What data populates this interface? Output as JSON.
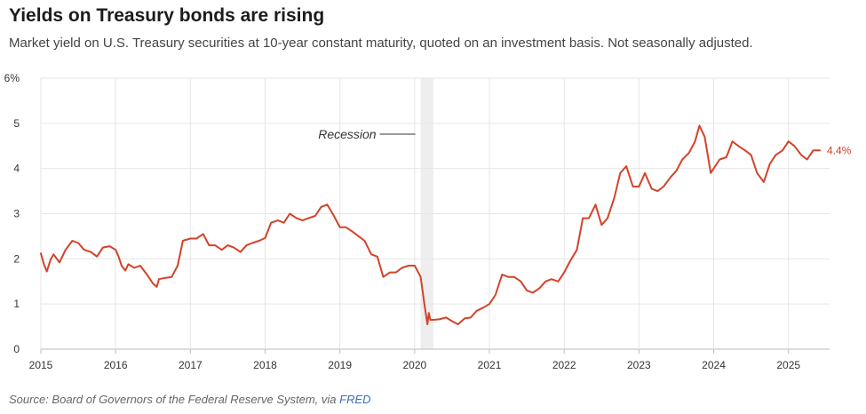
{
  "header": {
    "title": "Yields on Treasury bonds are rising",
    "subtitle": "Market yield on U.S. Treasury securities at 10-year constant maturity, quoted on an investment basis. Not seasonally adjusted."
  },
  "footer": {
    "source_prefix": "Source: Board of Governors of the Federal Reserve System, via ",
    "source_link": "FRED"
  },
  "colors": {
    "line": "#d2432a",
    "grid": "#e6e6e6",
    "recession": "#eeeeee",
    "axis": "#bbbbbb"
  },
  "chart_data": {
    "type": "line",
    "title": "Yields on Treasury bonds are rising",
    "subtitle": "Market yield on U.S. Treasury securities at 10-year constant maturity, quoted on an investment basis. Not seasonally adjusted.",
    "xlabel": "",
    "ylabel": "",
    "xlim": [
      2015.0,
      2025.55
    ],
    "ylim": [
      0,
      6
    ],
    "grid": true,
    "x_ticks": [
      2015,
      2016,
      2017,
      2018,
      2019,
      2020,
      2021,
      2022,
      2023,
      2024,
      2025
    ],
    "x_tick_labels": [
      "2015",
      "2016",
      "2017",
      "2018",
      "2019",
      "2020",
      "2021",
      "2022",
      "2023",
      "2024",
      "2025"
    ],
    "y_ticks": [
      0,
      1,
      2,
      3,
      4,
      5,
      6
    ],
    "y_tick_labels": [
      "0",
      "1",
      "2",
      "3",
      "4",
      "5",
      "6%"
    ],
    "recession": {
      "start": 2020.08,
      "end": 2020.25,
      "label": "Recession"
    },
    "end_label": "4.4%",
    "series": [
      {
        "x": [
          2015.0,
          2015.04,
          2015.08,
          2015.13,
          2015.17,
          2015.25,
          2015.33,
          2015.42,
          2015.5,
          2015.58,
          2015.67,
          2015.75,
          2015.83,
          2015.92,
          2016.0,
          2016.04,
          2016.08,
          2016.13,
          2016.17,
          2016.25,
          2016.33,
          2016.42,
          2016.5,
          2016.55,
          2016.58,
          2016.67,
          2016.75,
          2016.83,
          2016.9,
          2017.0,
          2017.08,
          2017.17,
          2017.25,
          2017.33,
          2017.42,
          2017.5,
          2017.58,
          2017.67,
          2017.75,
          2017.83,
          2017.92,
          2018.0,
          2018.08,
          2018.17,
          2018.25,
          2018.33,
          2018.42,
          2018.5,
          2018.58,
          2018.67,
          2018.75,
          2018.83,
          2018.92,
          2019.0,
          2019.08,
          2019.17,
          2019.25,
          2019.33,
          2019.42,
          2019.5,
          2019.58,
          2019.67,
          2019.75,
          2019.83,
          2019.92,
          2020.0,
          2020.08,
          2020.13,
          2020.17,
          2020.19,
          2020.21,
          2020.25,
          2020.33,
          2020.42,
          2020.5,
          2020.58,
          2020.67,
          2020.75,
          2020.83,
          2020.92,
          2021.0,
          2021.08,
          2021.17,
          2021.25,
          2021.33,
          2021.42,
          2021.5,
          2021.58,
          2021.67,
          2021.75,
          2021.83,
          2021.92,
          2022.0,
          2022.08,
          2022.17,
          2022.25,
          2022.33,
          2022.42,
          2022.5,
          2022.58,
          2022.67,
          2022.75,
          2022.83,
          2022.92,
          2023.0,
          2023.08,
          2023.17,
          2023.25,
          2023.33,
          2023.42,
          2023.5,
          2023.58,
          2023.67,
          2023.75,
          2023.81,
          2023.88,
          2023.96,
          2024.0,
          2024.08,
          2024.17,
          2024.25,
          2024.33,
          2024.42,
          2024.5,
          2024.58,
          2024.67,
          2024.75,
          2024.83,
          2024.92,
          2025.0,
          2025.08,
          2025.17,
          2025.25,
          2025.33,
          2025.42
        ],
        "values": [
          2.12,
          1.88,
          1.72,
          1.98,
          2.1,
          1.92,
          2.2,
          2.4,
          2.35,
          2.2,
          2.15,
          2.05,
          2.25,
          2.28,
          2.2,
          2.05,
          1.85,
          1.74,
          1.88,
          1.8,
          1.85,
          1.65,
          1.45,
          1.38,
          1.55,
          1.58,
          1.6,
          1.85,
          2.4,
          2.45,
          2.45,
          2.55,
          2.3,
          2.3,
          2.2,
          2.3,
          2.25,
          2.15,
          2.3,
          2.35,
          2.4,
          2.46,
          2.8,
          2.85,
          2.8,
          3.0,
          2.9,
          2.85,
          2.9,
          2.95,
          3.15,
          3.2,
          2.95,
          2.7,
          2.7,
          2.6,
          2.5,
          2.4,
          2.1,
          2.05,
          1.6,
          1.7,
          1.7,
          1.8,
          1.85,
          1.85,
          1.6,
          1.0,
          0.55,
          0.8,
          0.65,
          0.65,
          0.66,
          0.7,
          0.62,
          0.55,
          0.68,
          0.7,
          0.85,
          0.92,
          1.0,
          1.2,
          1.65,
          1.6,
          1.6,
          1.5,
          1.3,
          1.25,
          1.35,
          1.5,
          1.55,
          1.5,
          1.7,
          1.95,
          2.2,
          2.9,
          2.9,
          3.2,
          2.75,
          2.9,
          3.35,
          3.9,
          4.05,
          3.6,
          3.6,
          3.9,
          3.55,
          3.5,
          3.6,
          3.8,
          3.95,
          4.2,
          4.35,
          4.6,
          4.95,
          4.7,
          3.9,
          4.0,
          4.2,
          4.25,
          4.6,
          4.5,
          4.4,
          4.3,
          3.9,
          3.7,
          4.1,
          4.3,
          4.4,
          4.6,
          4.5,
          4.3,
          4.2,
          4.4,
          4.4
        ]
      }
    ]
  }
}
